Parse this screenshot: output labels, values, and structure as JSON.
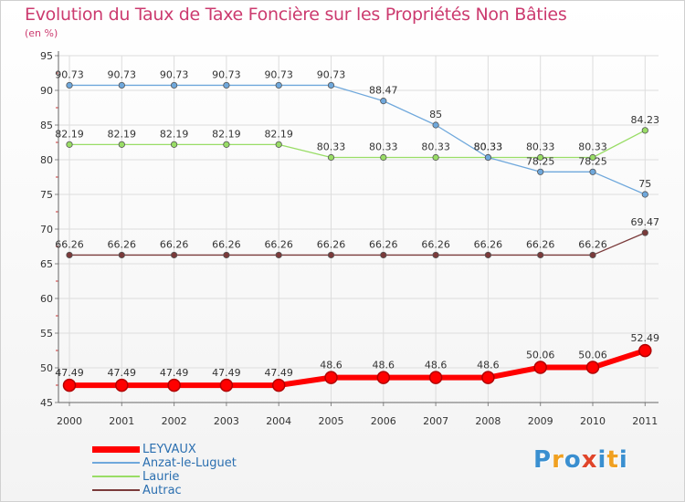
{
  "title": "Evolution du Taux de Taxe Foncière sur les Propriétés Non Bâties",
  "unit": "(en %)",
  "logo": {
    "text": "Proxiti",
    "colors": [
      "#3a8fd0",
      "#f0a020",
      "#3a8fd0",
      "#e0452a",
      "#3a8fd0",
      "#f0a020",
      "#3a8fd0"
    ]
  },
  "chart_data": {
    "type": "line",
    "x": [
      "2000",
      "2001",
      "2002",
      "2003",
      "2004",
      "2005",
      "2006",
      "2007",
      "2008",
      "2009",
      "2010",
      "2011"
    ],
    "ylim": [
      45,
      95
    ],
    "yticks": [
      "45",
      "50",
      "55",
      "60",
      "65",
      "70",
      "75",
      "80",
      "85",
      "90",
      "95"
    ],
    "grid": true,
    "legend_position": "bottom-left",
    "series": [
      {
        "name": "LEYVAUX",
        "color": "#ff0000",
        "values": [
          47.49,
          47.49,
          47.49,
          47.49,
          47.49,
          48.6,
          48.6,
          48.6,
          48.6,
          50.06,
          50.06,
          52.49
        ],
        "labels": [
          "47.49",
          "47.49",
          "47.49",
          "47.49",
          "47.49",
          "48.6",
          "48.6",
          "48.6",
          "48.6",
          "50.06",
          "50.06",
          "52.49"
        ]
      },
      {
        "name": "Anzat-le-Luguet",
        "color": "#6fa8dc",
        "values": [
          90.73,
          90.73,
          90.73,
          90.73,
          90.73,
          90.73,
          88.47,
          85,
          80.33,
          78.25,
          78.25,
          75
        ],
        "labels": [
          "90.73",
          "90.73",
          "90.73",
          "90.73",
          "90.73",
          "90.73",
          "88.47",
          "85",
          "80.33",
          "78.25",
          "78.25",
          "75"
        ]
      },
      {
        "name": "Laurie",
        "color": "#99dd66",
        "values": [
          82.19,
          82.19,
          82.19,
          82.19,
          82.19,
          80.33,
          80.33,
          80.33,
          80.33,
          80.33,
          80.33,
          84.23
        ],
        "labels": [
          "82.19",
          "82.19",
          "82.19",
          "82.19",
          "82.19",
          "80.33",
          "80.33",
          "80.33",
          "80.33",
          "80.33",
          "80.33",
          "84.23"
        ]
      },
      {
        "name": "Autrac",
        "color": "#7a3a3a",
        "values": [
          66.26,
          66.26,
          66.26,
          66.26,
          66.26,
          66.26,
          66.26,
          66.26,
          66.26,
          66.26,
          66.26,
          69.47
        ],
        "labels": [
          "66.26",
          "66.26",
          "66.26",
          "66.26",
          "66.26",
          "66.26",
          "66.26",
          "66.26",
          "66.26",
          "66.26",
          "66.26",
          "69.47"
        ]
      }
    ]
  }
}
